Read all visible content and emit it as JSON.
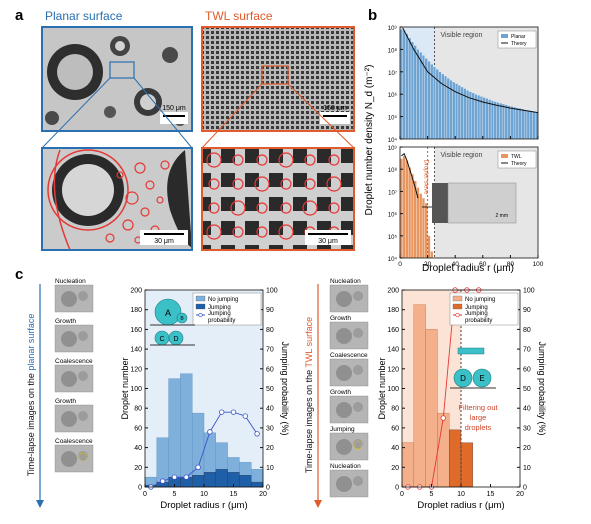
{
  "panel_labels": {
    "a": "a",
    "b": "b",
    "c": "c"
  },
  "panel_a": {
    "planar_title": "Planar surface",
    "twl_title": "TWL surface",
    "scale_top_left": "150 μm",
    "scale_top_right": "150 μm",
    "scale_bottom_left": "30 μm",
    "scale_bottom_right": "30 μm",
    "colors": {
      "planar": "#2a6fb0",
      "twl": "#e05a2b",
      "circle": "#e53935"
    }
  },
  "panel_b": {
    "ylabel": "Droplet number density N_d (m⁻²)",
    "xlabel": "Droplet radius r (μm)",
    "top": {
      "visible_label": "Visible region",
      "legend": [
        "Planar",
        "Theory"
      ],
      "yticks": [
        "10⁹",
        "10⁸",
        "10⁷",
        "10⁶",
        "10⁵",
        "10⁴"
      ]
    },
    "bottom": {
      "visible_label": "Visible region",
      "legend": [
        "TWL",
        "Theory"
      ],
      "sieve_label": "Droplet sieve",
      "inset_scale": "2 mm",
      "yticks": [
        "10⁹",
        "10⁸",
        "10⁷",
        "10⁶",
        "10⁵",
        "10⁴"
      ]
    },
    "xticks": [
      "0",
      "20",
      "40",
      "60",
      "80",
      "100"
    ]
  },
  "panel_c": {
    "left_strip": {
      "vertical_label_1": "Time-lapse images on the ",
      "vertical_label_2": "planar surface",
      "stages": [
        "Nucleation",
        "Growth",
        "Coalescence",
        "Growth",
        "Coalescence"
      ]
    },
    "right_strip": {
      "vertical_label_1": "Time-lapse images on the ",
      "vertical_label_2": "TWL surface",
      "stages": [
        "Nucleation",
        "Growth",
        "Coalescence",
        "Growth",
        "Jumping",
        "Nucleation"
      ]
    },
    "left_chart_annotations": [
      "A",
      "B",
      "C",
      "D"
    ],
    "right_chart_annotations": [
      "D",
      "E"
    ],
    "filter_note": "Filtering out large droplets"
  },
  "chart_data": [
    {
      "type": "bar",
      "id": "b-top",
      "title": "",
      "xlabel": "Droplet radius r (μm)",
      "ylabel": "Droplet number density N_d (m⁻²)",
      "yscale": "log",
      "xlim": [
        0,
        100
      ],
      "ylim": [
        10000,
        1000000000
      ],
      "series": [
        {
          "name": "Planar",
          "bin_width": 2,
          "values": [
            800000000,
            700000000,
            500000000,
            320000000,
            220000000,
            150000000,
            100000000,
            75000000,
            55000000,
            40000000,
            30000000,
            22000000,
            17000000,
            13000000,
            10000000,
            8000000,
            6500000,
            5200000,
            4200000,
            3500000,
            3000000,
            2500000,
            2100000,
            1800000,
            1500000,
            1300000,
            1150000,
            1000000,
            900000,
            800000,
            720000,
            650000,
            580000,
            520000,
            470000,
            430000,
            400000,
            370000,
            340000,
            310000,
            290000,
            270000,
            250000,
            235000,
            220000,
            205000,
            195000,
            185000,
            175000,
            165000
          ]
        }
      ],
      "theory": {
        "name": "Theory",
        "x": [
          2,
          10,
          20,
          30,
          40,
          50,
          60,
          70,
          80,
          90,
          100
        ],
        "y": [
          900000000,
          100000000,
          10000000,
          3000000,
          1300000,
          700000,
          450000,
          320000,
          240000,
          190000,
          150000
        ]
      },
      "visible_region_from": 25
    },
    {
      "type": "bar",
      "id": "b-bottom",
      "title": "",
      "xlabel": "Droplet radius r (μm)",
      "ylabel": "Droplet number density N_d (m⁻²)",
      "yscale": "log",
      "xlim": [
        0,
        100
      ],
      "ylim": [
        10000,
        1000000000
      ],
      "series": [
        {
          "name": "TWL",
          "bin_width": 2,
          "values": [
            300000000,
            400000000,
            250000000,
            120000000,
            60000000,
            30000000,
            15000000,
            8000000,
            5000000,
            3000000,
            100000,
            20000
          ]
        }
      ],
      "theory": {
        "name": "Theory",
        "x": [
          1,
          3,
          5,
          7,
          9,
          11,
          13
        ],
        "y": [
          400000000,
          500000000,
          250000000,
          100000000,
          40000000,
          15000000,
          5000000
        ]
      },
      "droplet_sieve_at": 20,
      "visible_region_from": 25
    },
    {
      "type": "bar",
      "id": "c-left",
      "title": "",
      "xlabel": "Droplet radius r (μm)",
      "ylabel": "Droplet number",
      "y2label": "Jumping probability (%)",
      "xlim": [
        0,
        20
      ],
      "ylim": [
        0,
        200
      ],
      "y2lim": [
        0,
        100
      ],
      "x_bins": [
        0,
        2,
        4,
        6,
        8,
        10,
        12,
        14,
        16,
        18,
        20
      ],
      "series": [
        {
          "name": "No jumping",
          "values": [
            10,
            50,
            110,
            115,
            75,
            55,
            45,
            30,
            25,
            18
          ]
        },
        {
          "name": "Jumping",
          "values": [
            2,
            5,
            10,
            10,
            12,
            15,
            18,
            15,
            12,
            5
          ]
        }
      ],
      "probability": {
        "name": "Jumping probability",
        "x": [
          1,
          3,
          5,
          7,
          9,
          11,
          13,
          15,
          17,
          19
        ],
        "y": [
          0,
          3,
          5,
          5,
          10,
          28,
          38,
          38,
          36,
          27
        ]
      }
    },
    {
      "type": "bar",
      "id": "c-right",
      "title": "",
      "xlabel": "Droplet radius r (μm)",
      "ylabel": "Droplet number",
      "y2label": "Jumping probability (%)",
      "xlim": [
        0,
        20
      ],
      "ylim": [
        0,
        200
      ],
      "y2lim": [
        0,
        100
      ],
      "x_bins": [
        0,
        2,
        4,
        6,
        8,
        10,
        12,
        14
      ],
      "series": [
        {
          "name": "No jumping",
          "values": [
            45,
            185,
            160,
            75,
            0,
            0,
            0
          ]
        },
        {
          "name": "Jumping",
          "values": [
            0,
            0,
            0,
            0,
            58,
            45,
            0
          ]
        }
      ],
      "probability": {
        "name": "Jumping probability",
        "x": [
          1,
          3,
          5,
          7,
          9,
          11,
          13
        ],
        "y": [
          0,
          0,
          0,
          35,
          100,
          100,
          100
        ]
      },
      "filter_region_to": 10
    }
  ]
}
